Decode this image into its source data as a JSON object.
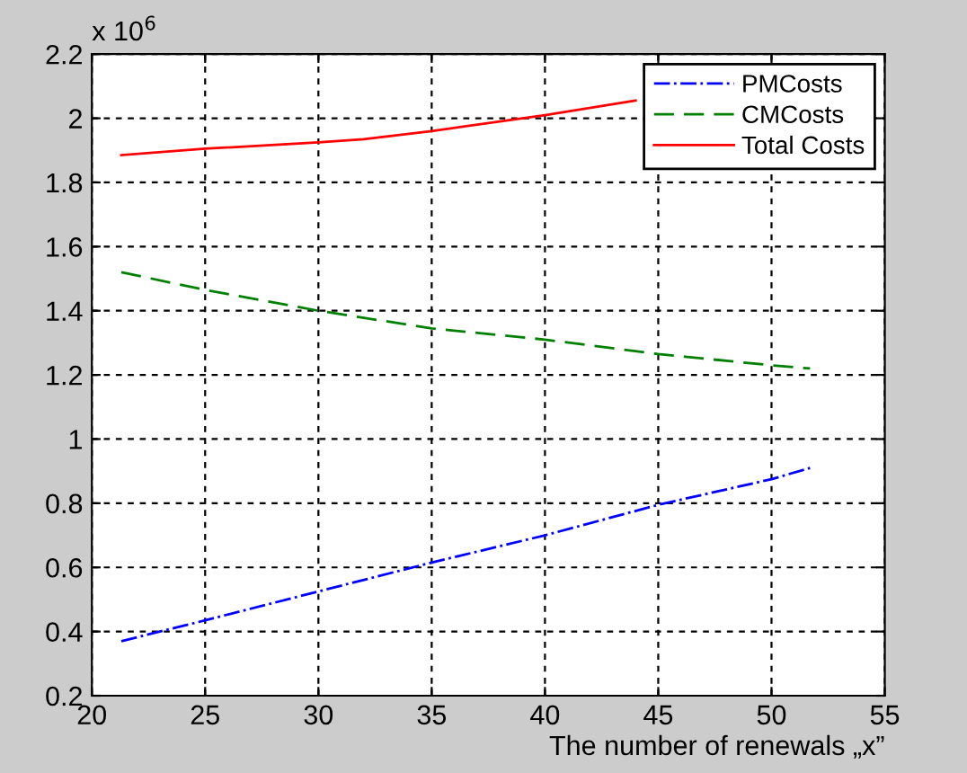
{
  "chart_data": {
    "type": "line",
    "xlabel": "The number of renewals „x”",
    "annotations": [
      "x 10$^{6}$"
    ],
    "series": [
      {
        "name": "PMCosts",
        "color": "#0000ff",
        "line_style": "dashdot",
        "x": [
          21.3,
          25,
          30,
          35,
          40,
          45,
          50,
          51.7
        ],
        "values": [
          0.37,
          0.435,
          0.525,
          0.615,
          0.7,
          0.795,
          0.875,
          0.91
        ]
      },
      {
        "name": "CMCosts",
        "color": "#008000",
        "line_style": "dashed",
        "x": [
          21.3,
          25,
          30,
          35,
          40,
          45,
          50,
          51.7
        ],
        "values": [
          1.52,
          1.465,
          1.4,
          1.345,
          1.31,
          1.265,
          1.23,
          1.22
        ]
      },
      {
        "name": "Total Costs",
        "color": "#ff0000",
        "line_style": "solid",
        "x": [
          21.3,
          25,
          30,
          32,
          35,
          40,
          44
        ],
        "values": [
          1.885,
          1.905,
          1.925,
          1.935,
          1.96,
          2.01,
          2.055
        ]
      }
    ],
    "xlim": [
      20,
      55
    ],
    "xticks": [
      20,
      25,
      30,
      35,
      40,
      45,
      50,
      55
    ],
    "ylim": [
      0.2,
      2.2
    ],
    "yticks": [
      0.2,
      0.4,
      0.6,
      0.8,
      1,
      1.2,
      1.4,
      1.6,
      1.8,
      2,
      2.2
    ],
    "grid": true,
    "legend": "top right"
  }
}
